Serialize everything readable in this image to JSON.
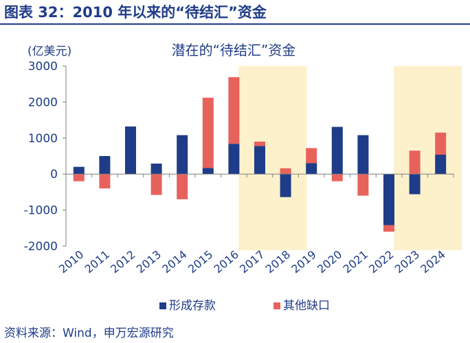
{
  "figure_title": "图表 32：2010 年以来的“待结汇”资金",
  "source": "资料来源：Wind，申万宏源研究",
  "colors": {
    "series1": "#1f3c88",
    "series2": "#e8625c",
    "highlight": "#fdf1cc",
    "title": "#1f3c88"
  },
  "chart_data": {
    "type": "bar",
    "stacked": true,
    "title": "潜在的“待结汇”资金",
    "ylabel": "(亿美元)",
    "xlabel": "",
    "ylim": [
      -2000,
      3000
    ],
    "yticks": [
      3000,
      2000,
      1000,
      0,
      -1000,
      -2000
    ],
    "grid": false,
    "legend_position": "bottom",
    "categories": [
      "2010",
      "2011",
      "2012",
      "2013",
      "2014",
      "2015",
      "2016",
      "2017",
      "2018",
      "2019",
      "2020",
      "2021",
      "2022",
      "2023",
      "2024"
    ],
    "series": [
      {
        "name": "形成存款",
        "values": [
          200,
          500,
          1320,
          290,
          1080,
          170,
          840,
          780,
          -640,
          300,
          1310,
          1080,
          -1420,
          -560,
          540
        ]
      },
      {
        "name": "其他缺口",
        "values": [
          -200,
          -400,
          0,
          -580,
          -700,
          1950,
          1850,
          120,
          160,
          420,
          -200,
          -600,
          -180,
          650,
          610
        ]
      }
    ],
    "highlight_ranges": [
      [
        "2017",
        "2018"
      ],
      [
        "2023",
        "2024"
      ]
    ]
  }
}
